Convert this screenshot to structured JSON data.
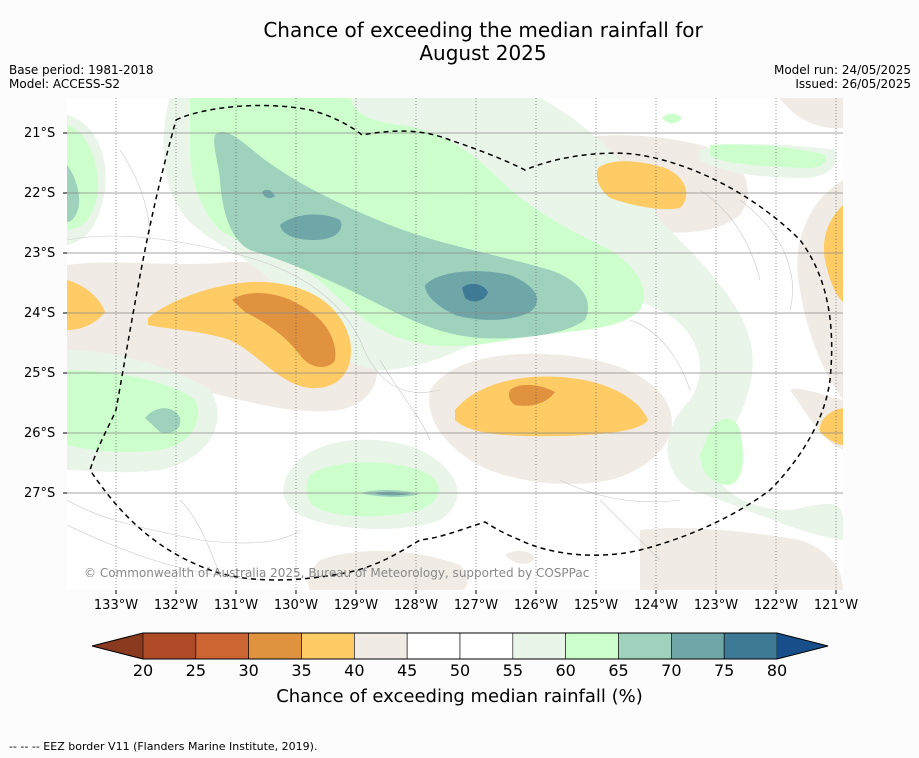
{
  "title_line1": "Chance of exceeding the median rainfall for",
  "title_line2": "August 2025",
  "meta_left": [
    "Base period: 1981-2018",
    "Model: ACCESS-S2"
  ],
  "meta_right": [
    "Model run: 24/05/2025",
    "Issued: 26/05/2025"
  ],
  "copyright": "© Commonwealth of Australia 2025, Bureau of Meteorology, supported by COSPPac",
  "lat_ticks": [
    "21°S",
    "22°S",
    "23°S",
    "24°S",
    "25°S",
    "26°S",
    "27°S"
  ],
  "lon_ticks": [
    "133°W",
    "132°W",
    "131°W",
    "130°W",
    "129°W",
    "128°W",
    "127°W",
    "126°W",
    "125°W",
    "124°W",
    "123°W",
    "122°W",
    "121°W"
  ],
  "colorbar": {
    "ticks": [
      "20",
      "25",
      "30",
      "35",
      "40",
      "45",
      "50",
      "55",
      "60",
      "65",
      "70",
      "75",
      "80"
    ],
    "colors": [
      "#ae4a26",
      "#cc6433",
      "#e0923f",
      "#fecb65",
      "#f0ece5",
      "#ffffff",
      "#ffffff",
      "#eaf5ea",
      "#ccffcc",
      "#9ed2bd",
      "#6fa6a8",
      "#3e7a96"
    ],
    "low_extend": "#8a3a1e",
    "high_extend": "#184f8a",
    "label": "Chance of exceeding median rainfall (%)"
  },
  "footer": "--  --  -- EEZ border V11 (Flanders Marine Institute, 2019)."
}
